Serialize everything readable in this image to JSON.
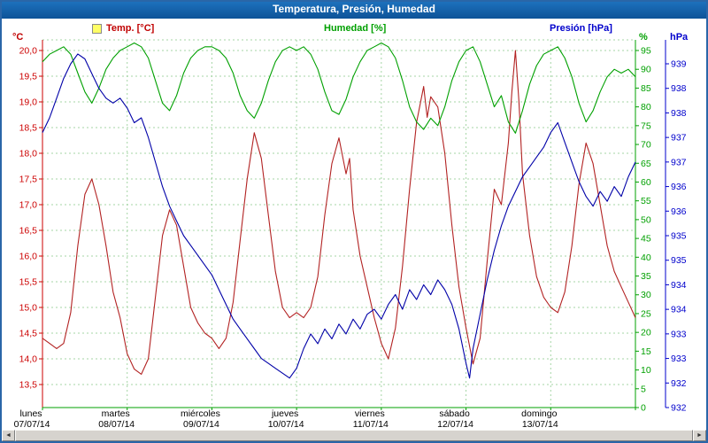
{
  "window": {
    "title": "Temperatura, Presión, Humedad"
  },
  "legend": {
    "temp": "Temp. [°C]",
    "humidity": "Humedad [%]",
    "pressure": "Presión [hPa]"
  },
  "axes_units": {
    "left": "°C",
    "humidity": "%",
    "pressure": "hPa"
  },
  "colors": {
    "temp_line": "#b22222",
    "temp_axis": "#cc0000",
    "humidity_line": "#00a000",
    "humidity_axis": "#00a000",
    "pressure_line": "#0000a8",
    "pressure_axis": "#0000cc",
    "grid": "#a5d6a5",
    "day_label": "#000000",
    "title_bar": "#0d5398"
  },
  "scrollbar": {
    "left_arrow": "◄",
    "right_arrow": "►"
  },
  "chart_data": {
    "type": "line",
    "title": "Temperatura, Presión, Humedad",
    "x_unit": "hours",
    "x_range": [
      0,
      168
    ],
    "grid": "dashed-green, vertical line at each day boundary, horizontal line each 0.5 °C",
    "days": [
      {
        "name": "lunes",
        "date": "07/07/14"
      },
      {
        "name": "martes",
        "date": "08/07/14"
      },
      {
        "name": "miércoles",
        "date": "09/07/14"
      },
      {
        "name": "jueves",
        "date": "10/07/14"
      },
      {
        "name": "viernes",
        "date": "11/07/14"
      },
      {
        "name": "sábado",
        "date": "12/07/14"
      },
      {
        "name": "domingo",
        "date": "13/07/14"
      }
    ],
    "axes": {
      "temperature": {
        "unit": "°C",
        "tick_min": 13.5,
        "tick_max": 20.0,
        "step": 0.5,
        "side": "left",
        "decimal_comma": true
      },
      "humidity": {
        "unit": "%",
        "tick_min": 0,
        "tick_max": 95,
        "step": 5,
        "side": "right-inner"
      },
      "pressure": {
        "unit": "hPa",
        "tick_min": 932,
        "tick_max": 939,
        "step": 0.5,
        "side": "right-outer",
        "label_floor": true
      }
    },
    "series": [
      {
        "name": "Temp. [°C]",
        "axis": "temperature",
        "color": "#b22222",
        "points": [
          [
            0,
            14.4
          ],
          [
            2,
            14.3
          ],
          [
            4,
            14.2
          ],
          [
            6,
            14.3
          ],
          [
            8,
            14.9
          ],
          [
            10,
            16.2
          ],
          [
            12,
            17.2
          ],
          [
            14,
            17.5
          ],
          [
            16,
            17.0
          ],
          [
            18,
            16.2
          ],
          [
            20,
            15.3
          ],
          [
            22,
            14.8
          ],
          [
            24,
            14.1
          ],
          [
            26,
            13.8
          ],
          [
            28,
            13.7
          ],
          [
            30,
            14.0
          ],
          [
            32,
            15.2
          ],
          [
            34,
            16.4
          ],
          [
            36,
            16.9
          ],
          [
            38,
            16.6
          ],
          [
            40,
            15.8
          ],
          [
            42,
            15.0
          ],
          [
            44,
            14.7
          ],
          [
            46,
            14.5
          ],
          [
            48,
            14.4
          ],
          [
            50,
            14.2
          ],
          [
            52,
            14.4
          ],
          [
            54,
            15.1
          ],
          [
            56,
            16.3
          ],
          [
            58,
            17.5
          ],
          [
            60,
            18.4
          ],
          [
            62,
            17.9
          ],
          [
            64,
            16.8
          ],
          [
            66,
            15.7
          ],
          [
            68,
            15.0
          ],
          [
            70,
            14.8
          ],
          [
            72,
            14.9
          ],
          [
            74,
            14.8
          ],
          [
            76,
            15.0
          ],
          [
            78,
            15.6
          ],
          [
            80,
            16.8
          ],
          [
            82,
            17.8
          ],
          [
            84,
            18.3
          ],
          [
            86,
            17.6
          ],
          [
            87,
            17.9
          ],
          [
            88,
            16.9
          ],
          [
            90,
            16.0
          ],
          [
            92,
            15.4
          ],
          [
            94,
            14.8
          ],
          [
            96,
            14.3
          ],
          [
            98,
            14.0
          ],
          [
            100,
            14.6
          ],
          [
            102,
            15.8
          ],
          [
            104,
            17.3
          ],
          [
            106,
            18.6
          ],
          [
            108,
            19.3
          ],
          [
            109,
            18.7
          ],
          [
            110,
            19.1
          ],
          [
            112,
            18.9
          ],
          [
            114,
            18.0
          ],
          [
            116,
            16.6
          ],
          [
            118,
            15.4
          ],
          [
            120,
            14.6
          ],
          [
            122,
            13.9
          ],
          [
            124,
            14.4
          ],
          [
            126,
            15.9
          ],
          [
            128,
            17.3
          ],
          [
            130,
            17.0
          ],
          [
            132,
            18.2
          ],
          [
            133,
            19.2
          ],
          [
            134,
            20.0
          ],
          [
            135,
            19.0
          ],
          [
            136,
            17.6
          ],
          [
            138,
            16.4
          ],
          [
            140,
            15.6
          ],
          [
            142,
            15.2
          ],
          [
            144,
            15.0
          ],
          [
            146,
            14.9
          ],
          [
            148,
            15.3
          ],
          [
            150,
            16.2
          ],
          [
            152,
            17.4
          ],
          [
            154,
            18.2
          ],
          [
            156,
            17.8
          ],
          [
            158,
            17.0
          ],
          [
            160,
            16.2
          ],
          [
            162,
            15.7
          ],
          [
            164,
            15.4
          ],
          [
            166,
            15.1
          ],
          [
            168,
            14.8
          ]
        ]
      },
      {
        "name": "Humedad [%]",
        "axis": "humidity",
        "color": "#00a000",
        "points": [
          [
            0,
            92
          ],
          [
            2,
            94
          ],
          [
            4,
            95
          ],
          [
            6,
            96
          ],
          [
            8,
            94
          ],
          [
            10,
            89
          ],
          [
            12,
            84
          ],
          [
            14,
            81
          ],
          [
            16,
            85
          ],
          [
            18,
            90
          ],
          [
            20,
            93
          ],
          [
            22,
            95
          ],
          [
            24,
            96
          ],
          [
            26,
            97
          ],
          [
            28,
            96
          ],
          [
            30,
            93
          ],
          [
            32,
            87
          ],
          [
            34,
            81
          ],
          [
            36,
            79
          ],
          [
            38,
            83
          ],
          [
            40,
            89
          ],
          [
            42,
            93
          ],
          [
            44,
            95
          ],
          [
            46,
            96
          ],
          [
            48,
            96
          ],
          [
            50,
            95
          ],
          [
            52,
            93
          ],
          [
            54,
            89
          ],
          [
            56,
            83
          ],
          [
            58,
            79
          ],
          [
            60,
            77
          ],
          [
            62,
            81
          ],
          [
            64,
            87
          ],
          [
            66,
            92
          ],
          [
            68,
            95
          ],
          [
            70,
            96
          ],
          [
            72,
            95
          ],
          [
            74,
            96
          ],
          [
            76,
            94
          ],
          [
            78,
            90
          ],
          [
            80,
            84
          ],
          [
            82,
            79
          ],
          [
            84,
            78
          ],
          [
            86,
            82
          ],
          [
            88,
            88
          ],
          [
            90,
            92
          ],
          [
            92,
            95
          ],
          [
            94,
            96
          ],
          [
            96,
            97
          ],
          [
            98,
            96
          ],
          [
            100,
            93
          ],
          [
            102,
            87
          ],
          [
            104,
            80
          ],
          [
            106,
            76
          ],
          [
            108,
            74
          ],
          [
            110,
            77
          ],
          [
            112,
            75
          ],
          [
            114,
            80
          ],
          [
            116,
            87
          ],
          [
            118,
            92
          ],
          [
            120,
            95
          ],
          [
            122,
            96
          ],
          [
            124,
            92
          ],
          [
            126,
            86
          ],
          [
            128,
            80
          ],
          [
            130,
            83
          ],
          [
            132,
            76
          ],
          [
            134,
            73
          ],
          [
            136,
            79
          ],
          [
            138,
            86
          ],
          [
            140,
            91
          ],
          [
            142,
            94
          ],
          [
            144,
            95
          ],
          [
            146,
            96
          ],
          [
            148,
            93
          ],
          [
            150,
            88
          ],
          [
            152,
            81
          ],
          [
            154,
            76
          ],
          [
            156,
            79
          ],
          [
            158,
            84
          ],
          [
            160,
            88
          ],
          [
            162,
            90
          ],
          [
            164,
            89
          ],
          [
            166,
            90
          ],
          [
            168,
            88
          ]
        ]
      },
      {
        "name": "Presión [hPa]",
        "axis": "pressure",
        "color": "#0000a8",
        "points": [
          [
            0,
            937.6
          ],
          [
            2,
            937.9
          ],
          [
            4,
            938.3
          ],
          [
            6,
            938.7
          ],
          [
            8,
            939.0
          ],
          [
            10,
            939.2
          ],
          [
            12,
            939.1
          ],
          [
            14,
            938.8
          ],
          [
            16,
            938.5
          ],
          [
            18,
            938.3
          ],
          [
            20,
            938.2
          ],
          [
            22,
            938.3
          ],
          [
            24,
            938.1
          ],
          [
            26,
            937.8
          ],
          [
            28,
            937.9
          ],
          [
            30,
            937.5
          ],
          [
            32,
            937.0
          ],
          [
            34,
            936.5
          ],
          [
            36,
            936.1
          ],
          [
            38,
            935.8
          ],
          [
            40,
            935.5
          ],
          [
            42,
            935.3
          ],
          [
            44,
            935.1
          ],
          [
            46,
            934.9
          ],
          [
            48,
            934.7
          ],
          [
            50,
            934.4
          ],
          [
            52,
            934.1
          ],
          [
            54,
            933.8
          ],
          [
            56,
            933.6
          ],
          [
            58,
            933.4
          ],
          [
            60,
            933.2
          ],
          [
            62,
            933.0
          ],
          [
            64,
            932.9
          ],
          [
            66,
            932.8
          ],
          [
            68,
            932.7
          ],
          [
            70,
            932.6
          ],
          [
            72,
            932.8
          ],
          [
            74,
            933.2
          ],
          [
            76,
            933.5
          ],
          [
            78,
            933.3
          ],
          [
            80,
            933.6
          ],
          [
            82,
            933.4
          ],
          [
            84,
            933.7
          ],
          [
            86,
            933.5
          ],
          [
            88,
            933.8
          ],
          [
            90,
            933.6
          ],
          [
            92,
            933.9
          ],
          [
            94,
            934.0
          ],
          [
            96,
            933.8
          ],
          [
            98,
            934.1
          ],
          [
            100,
            934.3
          ],
          [
            102,
            934.0
          ],
          [
            104,
            934.4
          ],
          [
            106,
            934.2
          ],
          [
            108,
            934.5
          ],
          [
            110,
            934.3
          ],
          [
            112,
            934.6
          ],
          [
            114,
            934.4
          ],
          [
            116,
            934.1
          ],
          [
            118,
            933.6
          ],
          [
            120,
            932.9
          ],
          [
            121,
            932.6
          ],
          [
            122,
            933.2
          ],
          [
            124,
            933.9
          ],
          [
            126,
            934.6
          ],
          [
            128,
            935.2
          ],
          [
            130,
            935.7
          ],
          [
            132,
            936.1
          ],
          [
            134,
            936.4
          ],
          [
            136,
            936.7
          ],
          [
            138,
            936.9
          ],
          [
            140,
            937.1
          ],
          [
            142,
            937.3
          ],
          [
            144,
            937.6
          ],
          [
            146,
            937.8
          ],
          [
            148,
            937.4
          ],
          [
            150,
            937.0
          ],
          [
            152,
            936.6
          ],
          [
            154,
            936.3
          ],
          [
            156,
            936.1
          ],
          [
            158,
            936.4
          ],
          [
            160,
            936.2
          ],
          [
            162,
            936.5
          ],
          [
            164,
            936.3
          ],
          [
            166,
            936.7
          ],
          [
            168,
            937.0
          ]
        ]
      }
    ]
  }
}
